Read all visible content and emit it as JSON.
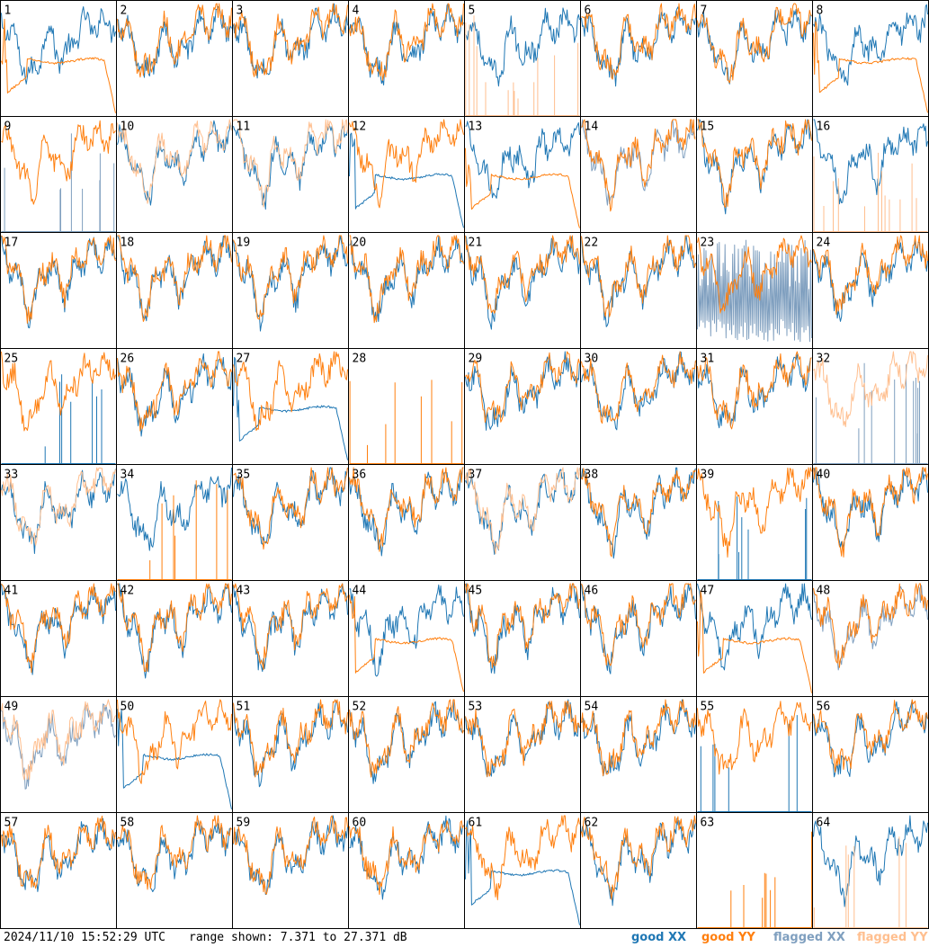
{
  "footer": {
    "timestamp": "2024/11/10 15:52:29 UTC",
    "range_text": "range shown: 7.371 to 27.371 dB"
  },
  "legend": [
    {
      "label": "good XX",
      "color": "#1f77b4"
    },
    {
      "label": "good YY",
      "color": "#ff7f0e"
    },
    {
      "label": "flagged XX",
      "color": "#7f9fbf"
    },
    {
      "label": "flagged YY",
      "color": "#ffbf8f"
    }
  ],
  "chart_data": {
    "type": "line",
    "grid": {
      "rows": 8,
      "cols": 8
    },
    "ylim": [
      7.371,
      27.371
    ],
    "yunit": "dB",
    "panels": [
      {
        "label": "1",
        "xx": "good",
        "yy": "good",
        "yy_shape": "flat"
      },
      {
        "label": "2",
        "xx": "good",
        "yy": "good"
      },
      {
        "label": "3",
        "xx": "good",
        "yy": "good"
      },
      {
        "label": "4",
        "xx": "good",
        "yy": "good"
      },
      {
        "label": "5",
        "xx": "good",
        "yy": "flagged",
        "yy_shape": "spikes"
      },
      {
        "label": "6",
        "xx": "good",
        "yy": "good"
      },
      {
        "label": "7",
        "xx": "good",
        "yy": "good"
      },
      {
        "label": "8",
        "xx": "good",
        "yy": "good",
        "yy_shape": "flat"
      },
      {
        "label": "9",
        "xx": "flagged",
        "yy": "good",
        "xx_shape": "spikes"
      },
      {
        "label": "10",
        "xx": "good",
        "yy": "flagged"
      },
      {
        "label": "11",
        "xx": "good",
        "yy": "flagged"
      },
      {
        "label": "12",
        "xx": "good",
        "yy": "good",
        "xx_shape": "flat"
      },
      {
        "label": "13",
        "xx": "good",
        "yy": "good",
        "yy_shape": "flat"
      },
      {
        "label": "14",
        "xx": "flagged",
        "yy": "good"
      },
      {
        "label": "15",
        "xx": "good",
        "yy": "good"
      },
      {
        "label": "16",
        "xx": "good",
        "yy": "flagged",
        "yy_shape": "spikes"
      },
      {
        "label": "17",
        "xx": "good",
        "yy": "good"
      },
      {
        "label": "18",
        "xx": "good",
        "yy": "good"
      },
      {
        "label": "19",
        "xx": "good",
        "yy": "good"
      },
      {
        "label": "20",
        "xx": "good",
        "yy": "good"
      },
      {
        "label": "21",
        "xx": "good",
        "yy": "good"
      },
      {
        "label": "22",
        "xx": "good",
        "yy": "good"
      },
      {
        "label": "23",
        "xx": "flagged",
        "yy": "good",
        "xx_shape": "noisy"
      },
      {
        "label": "24",
        "xx": "good",
        "yy": "good"
      },
      {
        "label": "25",
        "xx": "good",
        "yy": "good",
        "xx_shape": "spikes"
      },
      {
        "label": "26",
        "xx": "good",
        "yy": "good"
      },
      {
        "label": "27",
        "xx": "good",
        "yy": "good",
        "xx_shape": "flat"
      },
      {
        "label": "28",
        "xx": "none",
        "yy": "good",
        "yy_shape": "spikes"
      },
      {
        "label": "29",
        "xx": "good",
        "yy": "good"
      },
      {
        "label": "30",
        "xx": "good",
        "yy": "good"
      },
      {
        "label": "31",
        "xx": "good",
        "yy": "good"
      },
      {
        "label": "32",
        "xx": "flagged",
        "yy": "flagged",
        "xx_shape": "spikes"
      },
      {
        "label": "33",
        "xx": "good",
        "yy": "flagged"
      },
      {
        "label": "34",
        "xx": "good",
        "yy": "good",
        "yy_shape": "spikes"
      },
      {
        "label": "35",
        "xx": "good",
        "yy": "good"
      },
      {
        "label": "36",
        "xx": "good",
        "yy": "good"
      },
      {
        "label": "37",
        "xx": "good",
        "yy": "flagged"
      },
      {
        "label": "38",
        "xx": "good",
        "yy": "good"
      },
      {
        "label": "39",
        "xx": "good",
        "yy": "good",
        "xx_shape": "spikes"
      },
      {
        "label": "40",
        "xx": "good",
        "yy": "good"
      },
      {
        "label": "41",
        "xx": "good",
        "yy": "good"
      },
      {
        "label": "42",
        "xx": "good",
        "yy": "good"
      },
      {
        "label": "43",
        "xx": "good",
        "yy": "good"
      },
      {
        "label": "44",
        "xx": "good",
        "yy": "good",
        "yy_shape": "flat"
      },
      {
        "label": "45",
        "xx": "good",
        "yy": "good"
      },
      {
        "label": "46",
        "xx": "good",
        "yy": "good"
      },
      {
        "label": "47",
        "xx": "good",
        "yy": "good",
        "yy_shape": "flat"
      },
      {
        "label": "48",
        "xx": "flagged",
        "yy": "good"
      },
      {
        "label": "49",
        "xx": "flagged",
        "yy": "flagged"
      },
      {
        "label": "50",
        "xx": "good",
        "yy": "good",
        "xx_shape": "flat"
      },
      {
        "label": "51",
        "xx": "good",
        "yy": "good"
      },
      {
        "label": "52",
        "xx": "good",
        "yy": "good"
      },
      {
        "label": "53",
        "xx": "good",
        "yy": "good"
      },
      {
        "label": "54",
        "xx": "good",
        "yy": "good"
      },
      {
        "label": "55",
        "xx": "good",
        "yy": "good",
        "xx_shape": "spikes"
      },
      {
        "label": "56",
        "xx": "good",
        "yy": "good"
      },
      {
        "label": "57",
        "xx": "good",
        "yy": "good"
      },
      {
        "label": "58",
        "xx": "good",
        "yy": "good"
      },
      {
        "label": "59",
        "xx": "good",
        "yy": "good"
      },
      {
        "label": "60",
        "xx": "good",
        "yy": "good"
      },
      {
        "label": "61",
        "xx": "good",
        "yy": "good",
        "xx_shape": "flat"
      },
      {
        "label": "62",
        "xx": "good",
        "yy": "good"
      },
      {
        "label": "63",
        "xx": "none",
        "yy": "good",
        "yy_shape": "spikes"
      },
      {
        "label": "64",
        "xx": "good",
        "yy": "flagged",
        "yy_shape": "spikes"
      }
    ]
  }
}
